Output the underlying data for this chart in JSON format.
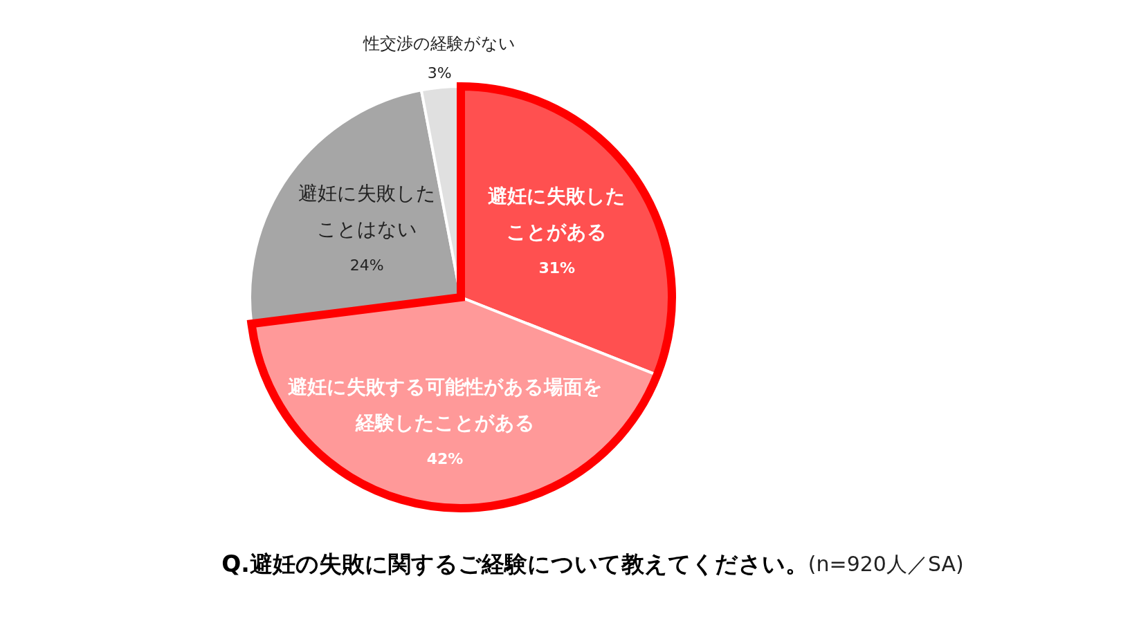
{
  "chart_data": {
    "type": "pie",
    "title": "Q.避妊の失敗に関するご経験について教えてください。",
    "subtitle": "(n=920人／SA)",
    "categories": [
      "避妊に失敗したことがある",
      "避妊に失敗する可能性がある場面を経験したことがある",
      "避妊に失敗したことはない",
      "性交渉の経験がない"
    ],
    "values": [
      31,
      42,
      24,
      3
    ],
    "colors": [
      "#ff5050",
      "#ff9999",
      "#a6a6a6",
      "#e0e0e0"
    ],
    "value_labels": [
      "31%",
      "42%",
      "24%",
      "3%"
    ]
  }
}
